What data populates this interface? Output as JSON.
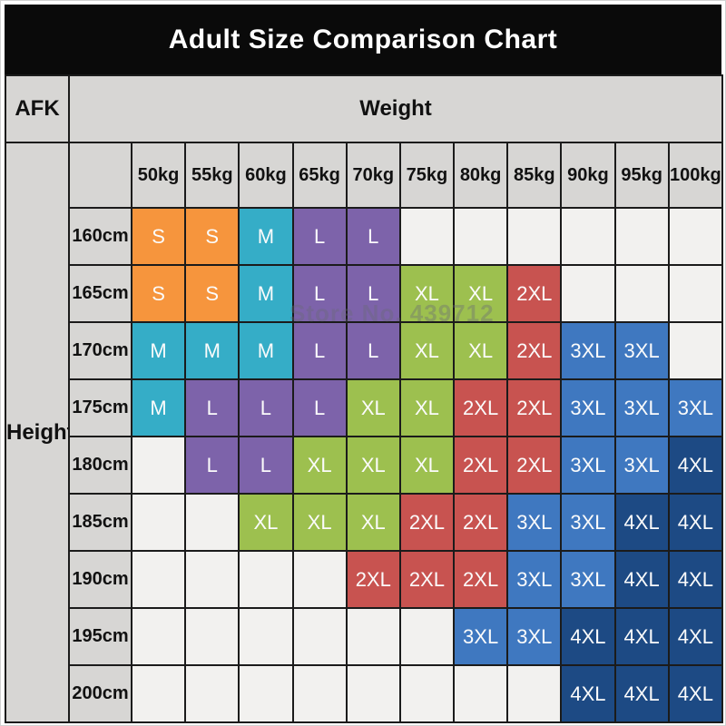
{
  "chart_data": {
    "type": "table",
    "title": "Adult Size Comparison Chart",
    "corner_label": "AFK",
    "column_group_label": "Weight",
    "row_group_label": "Height",
    "columns": [
      "50kg",
      "55kg",
      "60kg",
      "65kg",
      "70kg",
      "75kg",
      "80kg",
      "85kg",
      "90kg",
      "95kg",
      "100kg"
    ],
    "rows": [
      {
        "height": "160cm",
        "sizes": [
          "S",
          "S",
          "M",
          "L",
          "L",
          "",
          "",
          "",
          "",
          "",
          ""
        ]
      },
      {
        "height": "165cm",
        "sizes": [
          "S",
          "S",
          "M",
          "L",
          "L",
          "XL",
          "XL",
          "2XL",
          "",
          "",
          ""
        ]
      },
      {
        "height": "170cm",
        "sizes": [
          "M",
          "M",
          "M",
          "L",
          "L",
          "XL",
          "XL",
          "2XL",
          "3XL",
          "3XL",
          ""
        ]
      },
      {
        "height": "175cm",
        "sizes": [
          "M",
          "L",
          "L",
          "L",
          "XL",
          "XL",
          "2XL",
          "2XL",
          "3XL",
          "3XL",
          "3XL"
        ]
      },
      {
        "height": "180cm",
        "sizes": [
          "",
          "L",
          "L",
          "XL",
          "XL",
          "XL",
          "2XL",
          "2XL",
          "3XL",
          "3XL",
          "4XL"
        ]
      },
      {
        "height": "185cm",
        "sizes": [
          "",
          "",
          "XL",
          "XL",
          "XL",
          "2XL",
          "2XL",
          "3XL",
          "3XL",
          "4XL",
          "4XL"
        ]
      },
      {
        "height": "190cm",
        "sizes": [
          "",
          "",
          "",
          "",
          "2XL",
          "2XL",
          "2XL",
          "3XL",
          "3XL",
          "4XL",
          "4XL"
        ]
      },
      {
        "height": "195cm",
        "sizes": [
          "",
          "",
          "",
          "",
          "",
          "",
          "3XL",
          "3XL",
          "4XL",
          "4XL",
          "4XL"
        ]
      },
      {
        "height": "200cm",
        "sizes": [
          "",
          "",
          "",
          "",
          "",
          "",
          "",
          "",
          "4XL",
          "4XL",
          "4XL"
        ]
      }
    ]
  },
  "watermark": {
    "text": "Store No. 439712"
  },
  "colors": {
    "title_bar_bg": "#0a0a0a",
    "title_text": "#ffffff",
    "grid_line": "#1b1b1b",
    "header_bg": "#d7d6d4",
    "empty_cell_bg": "#f2f1ef",
    "cell_text": "#fbfbfb",
    "label_text": "#111111",
    "sizes": {
      "S": "#f6953d",
      "M": "#35adc7",
      "L": "#7d63aa",
      "XL": "#9dc04f",
      "2XL": "#c85350",
      "3XL": "#3f78c0",
      "4XL": "#1d4a84"
    }
  }
}
